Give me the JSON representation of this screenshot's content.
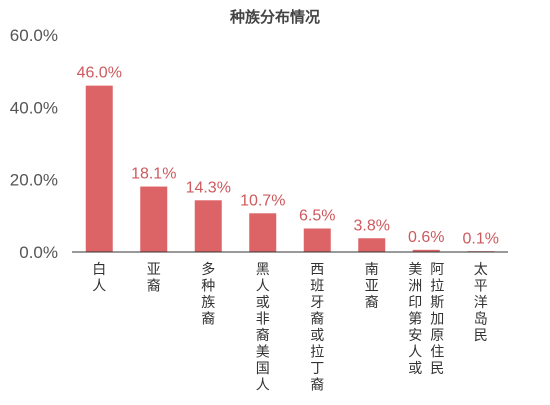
{
  "chart_data": {
    "type": "bar",
    "title": "种族分布情况",
    "categories": [
      "白人",
      "亚裔",
      "多种族裔",
      "黑人或非裔美国人",
      "西班牙裔或拉丁裔",
      "南亚裔",
      "美洲印第安人或阿拉斯加原住民",
      "太平洋岛民"
    ],
    "category_lines": [
      [
        "白人"
      ],
      [
        "亚裔"
      ],
      [
        "多种族裔"
      ],
      [
        "黑人或非裔美国人"
      ],
      [
        "西班牙裔或拉丁裔"
      ],
      [
        "南亚裔"
      ],
      [
        "美洲印第安人或",
        "阿拉斯加原住民"
      ],
      [
        "太平洋岛民"
      ]
    ],
    "values": [
      46.0,
      18.1,
      14.3,
      10.7,
      6.5,
      3.8,
      0.6,
      0.1
    ],
    "data_labels": [
      "46.0%",
      "18.1%",
      "14.3%",
      "10.7%",
      "6.5%",
      "3.8%",
      "0.6%",
      "0.1%"
    ],
    "y_ticks": [
      0,
      20,
      40,
      60
    ],
    "y_tick_labels": [
      "0.0%",
      "20.0%",
      "40.0%",
      "60.0%"
    ],
    "ylim": [
      0,
      60
    ],
    "bar_color": "#dc6467",
    "label_color": "#cc5a5e",
    "axis_color": "#333333",
    "grid": false,
    "legend": "none"
  }
}
